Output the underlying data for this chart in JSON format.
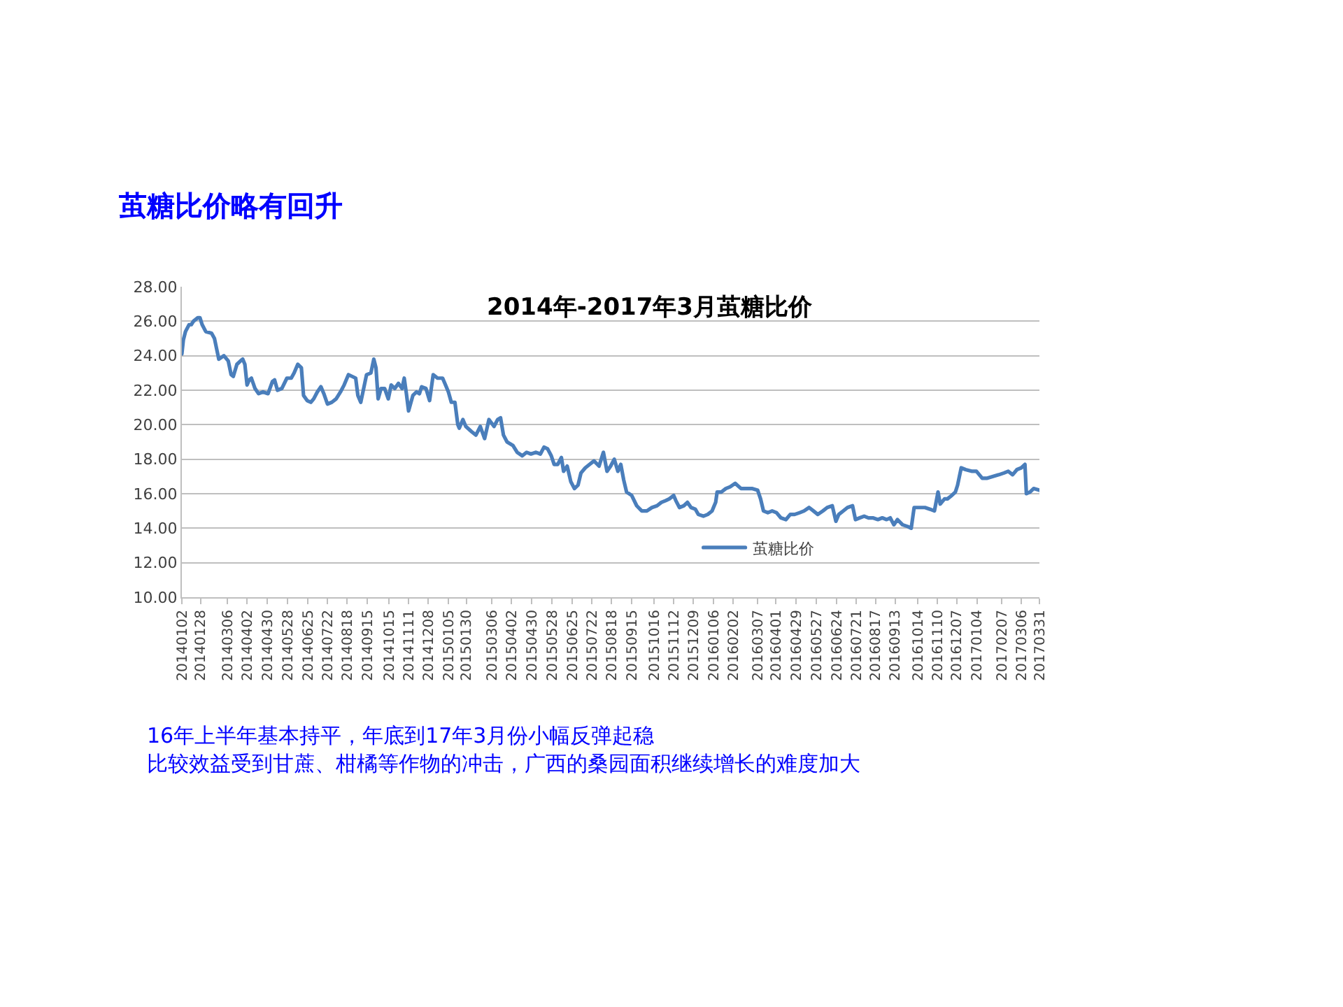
{
  "chart_data": {
    "type": "line",
    "title": "茧糖比价略有回升",
    "subtitle": "2014年-2017年3月茧糖比价",
    "annotations": [
      "16年上半年基本持平，年底到17年3月份小幅反弹起稳",
      "比较效益受到甘蔗、柑橘等作物的冲击，广西的桑园面积继续增长的难度加大"
    ],
    "x": [
      "2014-01-02",
      "2014-01-04",
      "2014-01-07",
      "2014-01-12",
      "2014-01-15",
      "2014-01-18",
      "2014-01-24",
      "2014-01-27",
      "2014-01-30",
      "2014-02-04",
      "2014-02-12",
      "2014-02-16",
      "2014-02-22",
      "2014-03-01",
      "2014-03-07",
      "2014-03-11",
      "2014-03-14",
      "2014-03-19",
      "2014-03-24",
      "2014-03-27",
      "2014-03-30",
      "2014-04-02",
      "2014-04-05",
      "2014-04-08",
      "2014-04-13",
      "2014-04-18",
      "2014-04-24",
      "2014-05-01",
      "2014-05-07",
      "2014-05-10",
      "2014-05-14",
      "2014-05-20",
      "2014-05-27",
      "2014-06-02",
      "2014-06-06",
      "2014-06-11",
      "2014-06-16",
      "2014-06-19",
      "2014-06-24",
      "2014-06-29",
      "2014-07-03",
      "2014-07-08",
      "2014-07-13",
      "2014-07-17",
      "2014-07-22",
      "2014-07-28",
      "2014-08-03",
      "2014-08-09",
      "2014-08-14",
      "2014-08-20",
      "2014-08-25",
      "2014-08-30",
      "2014-09-02",
      "2014-09-06",
      "2014-09-10",
      "2014-09-14",
      "2014-09-20",
      "2014-09-24",
      "2014-09-27",
      "2014-09-30",
      "2014-10-04",
      "2014-10-09",
      "2014-10-14",
      "2014-10-18",
      "2014-10-23",
      "2014-10-28",
      "2014-11-02",
      "2014-11-05",
      "2014-11-08",
      "2014-11-11",
      "2014-11-17",
      "2014-11-22",
      "2014-11-26",
      "2014-11-29",
      "2014-12-05",
      "2014-12-10",
      "2014-12-15",
      "2014-12-21",
      "2014-12-28",
      "2015-01-01",
      "2015-01-05",
      "2015-01-09",
      "2015-01-14",
      "2015-01-18",
      "2015-01-20",
      "2015-01-25",
      "2015-01-29",
      "2015-02-06",
      "2015-02-12",
      "2015-02-18",
      "2015-02-24",
      "2015-03-02",
      "2015-03-09",
      "2015-03-14",
      "2015-03-18",
      "2015-03-22",
      "2015-03-27",
      "2015-04-04",
      "2015-04-10",
      "2015-04-17",
      "2015-04-23",
      "2015-04-29",
      "2015-05-06",
      "2015-05-12",
      "2015-05-17",
      "2015-05-22",
      "2015-05-27",
      "2015-05-31",
      "2015-06-05",
      "2015-06-10",
      "2015-06-13",
      "2015-06-18",
      "2015-06-23",
      "2015-06-28",
      "2015-07-03",
      "2015-07-07",
      "2015-07-13",
      "2015-07-19",
      "2015-07-25",
      "2015-08-01",
      "2015-08-07",
      "2015-08-12",
      "2015-08-17",
      "2015-08-22",
      "2015-08-27",
      "2015-08-31",
      "2015-09-04",
      "2015-09-08",
      "2015-09-15",
      "2015-09-22",
      "2015-09-29",
      "2015-10-06",
      "2015-10-13",
      "2015-10-20",
      "2015-10-26",
      "2015-11-01",
      "2015-11-06",
      "2015-11-12",
      "2015-11-15",
      "2015-11-20",
      "2015-11-26",
      "2015-12-01",
      "2015-12-06",
      "2015-12-12",
      "2015-12-16",
      "2015-12-23",
      "2015-12-29",
      "2016-01-04",
      "2016-01-09",
      "2016-01-11",
      "2016-01-17",
      "2016-01-23",
      "2016-01-29",
      "2016-02-05",
      "2016-02-13",
      "2016-02-21",
      "2016-02-28",
      "2016-03-07",
      "2016-03-11",
      "2016-03-15",
      "2016-03-21",
      "2016-03-27",
      "2016-04-02",
      "2016-04-08",
      "2016-04-15",
      "2016-04-21",
      "2016-04-27",
      "2016-05-04",
      "2016-05-10",
      "2016-05-17",
      "2016-05-23",
      "2016-05-29",
      "2016-06-05",
      "2016-06-11",
      "2016-06-18",
      "2016-06-23",
      "2016-06-27",
      "2016-07-03",
      "2016-07-09",
      "2016-07-16",
      "2016-07-20",
      "2016-07-26",
      "2016-08-01",
      "2016-08-07",
      "2016-08-13",
      "2016-08-20",
      "2016-08-26",
      "2016-09-01",
      "2016-09-06",
      "2016-09-11",
      "2016-09-16",
      "2016-09-23",
      "2016-09-30",
      "2016-10-05",
      "2016-10-09",
      "2016-10-17",
      "2016-10-24",
      "2016-10-31",
      "2016-11-06",
      "2016-11-11",
      "2016-11-14",
      "2016-11-20",
      "2016-11-24",
      "2016-11-30",
      "2016-12-05",
      "2016-12-08",
      "2016-12-13",
      "2016-12-19",
      "2016-12-28",
      "2017-01-03",
      "2017-01-11",
      "2017-01-18",
      "2017-01-26",
      "2017-02-03",
      "2017-02-10",
      "2017-02-16",
      "2017-02-22",
      "2017-02-28",
      "2017-03-06",
      "2017-03-11",
      "2017-03-13",
      "2017-03-18",
      "2017-03-23",
      "2017-03-31"
    ],
    "series": [
      {
        "name": "茧糖比价",
        "color": "#4a7ebb",
        "values": [
          24.1,
          24.9,
          25.4,
          25.8,
          25.8,
          26.0,
          26.2,
          26.2,
          25.8,
          25.4,
          25.3,
          25.0,
          23.8,
          24.0,
          23.7,
          22.9,
          22.8,
          23.5,
          23.7,
          23.8,
          23.5,
          22.3,
          22.6,
          22.7,
          22.1,
          21.8,
          21.9,
          21.8,
          22.5,
          22.6,
          22.0,
          22.1,
          22.7,
          22.7,
          23.0,
          23.5,
          23.3,
          21.7,
          21.4,
          21.3,
          21.5,
          21.9,
          22.2,
          21.8,
          21.2,
          21.3,
          21.5,
          21.9,
          22.3,
          22.9,
          22.8,
          22.7,
          21.7,
          21.3,
          22.1,
          22.9,
          23.0,
          23.8,
          23.3,
          21.5,
          22.1,
          22.1,
          21.5,
          22.3,
          22.1,
          22.4,
          22.1,
          22.7,
          21.8,
          20.8,
          21.7,
          21.9,
          21.8,
          22.2,
          22.1,
          21.4,
          22.9,
          22.7,
          22.7,
          22.3,
          21.9,
          21.3,
          21.3,
          20.0,
          19.8,
          20.3,
          19.9,
          19.6,
          19.4,
          19.9,
          19.2,
          20.3,
          19.9,
          20.3,
          20.4,
          19.4,
          19.0,
          18.8,
          18.4,
          18.2,
          18.4,
          18.3,
          18.4,
          18.3,
          18.7,
          18.6,
          18.2,
          17.7,
          17.7,
          18.1,
          17.3,
          17.6,
          16.7,
          16.3,
          16.5,
          17.2,
          17.5,
          17.7,
          17.9,
          17.6,
          18.4,
          17.3,
          17.6,
          18.0,
          17.3,
          17.7,
          16.8,
          16.1,
          15.9,
          15.3,
          15.0,
          15.0,
          15.2,
          15.3,
          15.5,
          15.6,
          15.7,
          15.9,
          15.6,
          15.2,
          15.3,
          15.5,
          15.2,
          15.1,
          14.8,
          14.7,
          14.8,
          15.0,
          15.5,
          16.1,
          16.1,
          16.3,
          16.4,
          16.6,
          16.3,
          16.3,
          16.3,
          16.2,
          15.7,
          15.0,
          14.9,
          15.0,
          14.9,
          14.6,
          14.5,
          14.8,
          14.8,
          14.9,
          15.0,
          15.2,
          15.0,
          14.8,
          15.0,
          15.2,
          15.3,
          14.4,
          14.8,
          15.0,
          15.2,
          15.3,
          14.5,
          14.6,
          14.7,
          14.6,
          14.6,
          14.5,
          14.6,
          14.5,
          14.6,
          14.2,
          14.5,
          14.2,
          14.1,
          14.0,
          15.2,
          15.2,
          15.2,
          15.1,
          15.0,
          16.1,
          15.4,
          15.7,
          15.7,
          15.9,
          16.1,
          16.5,
          17.5,
          17.4,
          17.3,
          17.3,
          16.9,
          16.9,
          17.0,
          17.1,
          17.2,
          17.3,
          17.1,
          17.4,
          17.5,
          17.7,
          16.0,
          16.1,
          16.3,
          16.2
        ]
      }
    ],
    "xlim": [
      "2014-01-02",
      "2017-03-31"
    ],
    "xticks": [
      {
        "value": "2014-01-02",
        "label": "20140102"
      },
      {
        "value": "2014-01-28",
        "label": "20140128"
      },
      {
        "value": "2014-03-06",
        "label": "20140306"
      },
      {
        "value": "2014-04-02",
        "label": "20140402"
      },
      {
        "value": "2014-04-30",
        "label": "20140430"
      },
      {
        "value": "2014-05-28",
        "label": "20140528"
      },
      {
        "value": "2014-06-25",
        "label": "20140625"
      },
      {
        "value": "2014-07-22",
        "label": "20140722"
      },
      {
        "value": "2014-08-18",
        "label": "20140818"
      },
      {
        "value": "2014-09-15",
        "label": "20140915"
      },
      {
        "value": "2014-10-15",
        "label": "20141015"
      },
      {
        "value": "2014-11-11",
        "label": "20141111"
      },
      {
        "value": "2014-12-08",
        "label": "20141208"
      },
      {
        "value": "2015-01-05",
        "label": "20150105"
      },
      {
        "value": "2015-01-30",
        "label": "20150130"
      },
      {
        "value": "2015-03-06",
        "label": "20150306"
      },
      {
        "value": "2015-04-02",
        "label": "20150402"
      },
      {
        "value": "2015-04-30",
        "label": "20150430"
      },
      {
        "value": "2015-05-28",
        "label": "20150528"
      },
      {
        "value": "2015-06-25",
        "label": "20150625"
      },
      {
        "value": "2015-07-22",
        "label": "20150722"
      },
      {
        "value": "2015-08-18",
        "label": "20150818"
      },
      {
        "value": "2015-09-15",
        "label": "20150915"
      },
      {
        "value": "2015-10-16",
        "label": "20151016"
      },
      {
        "value": "2015-11-12",
        "label": "20151112"
      },
      {
        "value": "2015-12-09",
        "label": "20151209"
      },
      {
        "value": "2016-01-06",
        "label": "20160106"
      },
      {
        "value": "2016-02-02",
        "label": "20160202"
      },
      {
        "value": "2016-03-07",
        "label": "20160307"
      },
      {
        "value": "2016-04-01",
        "label": "20160401"
      },
      {
        "value": "2016-04-29",
        "label": "20160429"
      },
      {
        "value": "2016-05-27",
        "label": "20160527"
      },
      {
        "value": "2016-06-24",
        "label": "20160624"
      },
      {
        "value": "2016-07-21",
        "label": "20160721"
      },
      {
        "value": "2016-08-17",
        "label": "20160817"
      },
      {
        "value": "2016-09-13",
        "label": "20160913"
      },
      {
        "value": "2016-10-14",
        "label": "20161014"
      },
      {
        "value": "2016-11-10",
        "label": "20161110"
      },
      {
        "value": "2016-12-07",
        "label": "20161207"
      },
      {
        "value": "2017-01-04",
        "label": "20170104"
      },
      {
        "value": "2017-02-07",
        "label": "20170207"
      },
      {
        "value": "2017-03-06",
        "label": "20170306"
      },
      {
        "value": "2017-03-31",
        "label": "20170331"
      }
    ],
    "ylim": [
      10,
      28
    ],
    "yticks": [
      {
        "value": 10,
        "label": "10.00"
      },
      {
        "value": 12,
        "label": "12.00"
      },
      {
        "value": 14,
        "label": "14.00"
      },
      {
        "value": 16,
        "label": "16.00"
      },
      {
        "value": 18,
        "label": "18.00"
      },
      {
        "value": 20,
        "label": "20.00"
      },
      {
        "value": 22,
        "label": "22.00"
      },
      {
        "value": 24,
        "label": "24.00"
      },
      {
        "value": 26,
        "label": "26.00"
      },
      {
        "value": 28,
        "label": "28.00"
      }
    ],
    "grid": "y",
    "legend": "bottom",
    "line_style": "solid"
  }
}
